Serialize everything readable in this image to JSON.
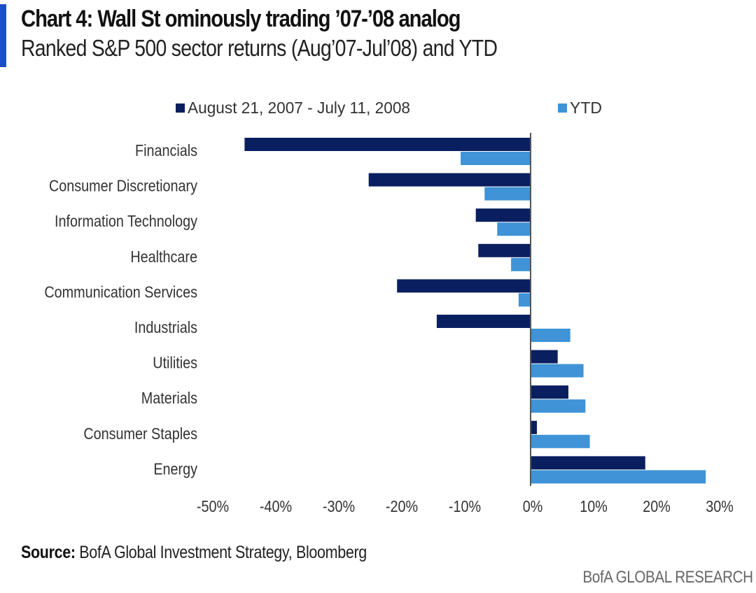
{
  "header": {
    "title": "Chart 4: Wall St ominously trading ’07-’08 analog",
    "subtitle": "Ranked S&P 500 sector returns (Aug’07-Jul’08) and YTD"
  },
  "footer": {
    "source_label": "Source:",
    "source_text": " BofA Global Investment Strategy, Bloomberg",
    "brand": "BofA GLOBAL RESEARCH"
  },
  "colors": {
    "series_dark": "#0a1f5f",
    "series_light": "#3f93d6",
    "axis": "#555555",
    "text": "#333333"
  },
  "chart_data": {
    "type": "bar",
    "orientation": "horizontal",
    "title": "Chart 4: Wall St ominously trading ’07-’08 analog",
    "subtitle": "Ranked S&P 500 sector returns (Aug’07-Jul’08) and YTD",
    "xlabel": "",
    "ylabel": "",
    "xlim": [
      -50,
      30
    ],
    "x_ticks": [
      -50,
      -40,
      -30,
      -20,
      -10,
      0,
      10,
      20,
      30
    ],
    "x_tick_labels": [
      "-50%",
      "-40%",
      "-30%",
      "-20%",
      "-10%",
      "0%",
      "10%",
      "20%",
      "30%"
    ],
    "grid": false,
    "legend_position": "top",
    "categories": [
      "Financials",
      "Consumer Discretionary",
      "Information Technology",
      "Healthcare",
      "Communication Services",
      "Industrials",
      "Utilities",
      "Materials",
      "Consumer Staples",
      "Energy"
    ],
    "series": [
      {
        "name": "August 21, 2007 - July 11, 2008",
        "color": "#0a1f5f",
        "values": [
          -45.4,
          -25.7,
          -8.7,
          -8.3,
          -21.2,
          -14.9,
          4.3,
          6.0,
          1.0,
          18.2
        ]
      },
      {
        "name": "YTD",
        "color": "#3f93d6",
        "values": [
          -11.1,
          -7.3,
          -5.3,
          -3.1,
          -1.9,
          6.3,
          8.4,
          8.7,
          9.4,
          27.8
        ]
      }
    ]
  }
}
